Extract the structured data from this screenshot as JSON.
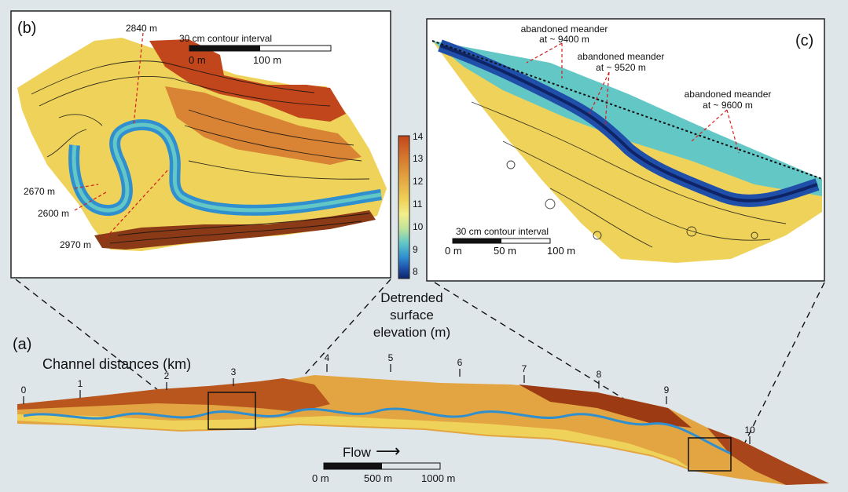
{
  "panels": {
    "b": {
      "label": "(b)",
      "contour_interval": "30 cm contour interval",
      "scale_start": "0 m",
      "scale_end": "100 m",
      "annotations": [
        "2840 m",
        "2670 m",
        "2600 m",
        "2970 m"
      ]
    },
    "c": {
      "label": "(c)",
      "contour_interval": "30 cm contour interval",
      "scale_start": "0 m",
      "scale_mid": "50 m",
      "scale_end": "100 m",
      "annotations": [
        {
          "line1": "abandoned meander",
          "line2": "at ~ 9400 m"
        },
        {
          "line1": "abandoned meander",
          "line2": "at ~ 9520 m"
        },
        {
          "line1": "abandoned meander",
          "line2": "at ~ 9600 m"
        }
      ]
    },
    "a": {
      "label": "(a)",
      "channel_title": "Channel distances (km)",
      "ticks": [
        "0",
        "1",
        "2",
        "3",
        "4",
        "5",
        "6",
        "7",
        "8",
        "9",
        "10"
      ],
      "flow_label": "Flow",
      "flow_arrow": "⟶",
      "scale_start": "0 m",
      "scale_mid": "500 m",
      "scale_end": "1000 m"
    }
  },
  "colorbar": {
    "title_line1": "Detrended",
    "title_line2": "surface",
    "title_line3": "elevation (m)",
    "ticks": [
      "14",
      "13",
      "12",
      "11",
      "10",
      "9",
      "8"
    ],
    "colors": [
      "#c2461c",
      "#d4772e",
      "#e2a542",
      "#efd25a",
      "#f3ee8c",
      "#bfe39c",
      "#63c7c6",
      "#2f8fcf",
      "#1f4fa8",
      "#0f2466"
    ]
  }
}
